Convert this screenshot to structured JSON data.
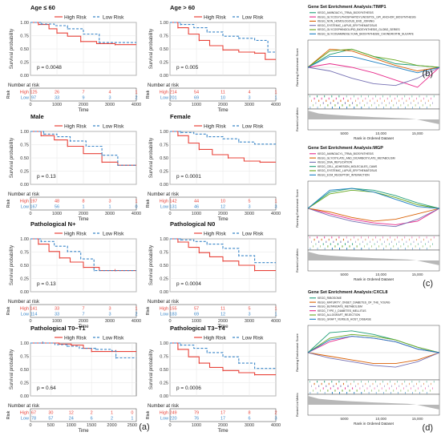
{
  "panel_labels": {
    "a": "(a)",
    "b": "(b)",
    "c": "(c)",
    "d": "(d)"
  },
  "km_common": {
    "legend_labels": [
      "High Risk",
      "Low Risk"
    ],
    "ylabel": "Survival probability",
    "xlabel": "Time",
    "risk_table_title": "Number at risk",
    "risk_side_label": "Risk",
    "risk_row_labels": [
      "High",
      "Low"
    ],
    "y_ticks": [
      "0.00",
      "0.25",
      "0.50",
      "0.75",
      "1.00"
    ],
    "colors": {
      "high": "#e8433a",
      "low": "#3a86c8",
      "grid": "#e6e6e6"
    }
  },
  "gsea_common": {
    "ylabel_top": "Running Enrichment Score",
    "ylabel_bottom": "Ranked List Metric",
    "xlabel": "Rank in Ordered Dataset",
    "x_ticks": [
      "5000",
      "10,000",
      "15,000"
    ]
  },
  "chart_data": [
    {
      "type": "line",
      "id": "km1",
      "title": "Age ≤ 60",
      "pvalue": "p = 0.0048",
      "x_ticks": [
        "0",
        "1000",
        "2000",
        "3000",
        "4000"
      ],
      "xlim": [
        0,
        4000
      ],
      "ylim": [
        0,
        1
      ],
      "series": [
        {
          "name": "High Risk",
          "x": [
            0,
            300,
            700,
            1000,
            1400,
            1900,
            2500,
            3200,
            4000
          ],
          "y": [
            1.0,
            0.96,
            0.88,
            0.8,
            0.74,
            0.64,
            0.6,
            0.58,
            0.58
          ]
        },
        {
          "name": "Low Risk",
          "x": [
            0,
            400,
            900,
            1400,
            2000,
            2600,
            3300,
            4000
          ],
          "y": [
            1.0,
            0.97,
            0.94,
            0.88,
            0.78,
            0.62,
            0.62,
            0.62
          ]
        }
      ],
      "risk": {
        "high": [
          "125",
          "26",
          "7",
          "4",
          "1"
        ],
        "low": [
          "97",
          "33",
          "9",
          "3",
          "2"
        ]
      }
    },
    {
      "type": "line",
      "id": "km2",
      "title": "Age > 60",
      "pvalue": "p = 0.005",
      "x_ticks": [
        "0",
        "1000",
        "2000",
        "3000",
        "4000"
      ],
      "xlim": [
        0,
        4000
      ],
      "ylim": [
        0,
        1
      ],
      "series": [
        {
          "name": "High Risk",
          "x": [
            0,
            300,
            700,
            1100,
            1500,
            2000,
            2600,
            3200,
            3600,
            4000
          ],
          "y": [
            1.0,
            0.9,
            0.78,
            0.66,
            0.56,
            0.48,
            0.44,
            0.42,
            0.3,
            0.3
          ]
        },
        {
          "name": "Low Risk",
          "x": [
            0,
            400,
            900,
            1400,
            2000,
            2600,
            3200,
            3700,
            4000
          ],
          "y": [
            1.0,
            0.96,
            0.9,
            0.82,
            0.74,
            0.7,
            0.66,
            0.44,
            0.44
          ]
        }
      ],
      "risk": {
        "high": [
          "214",
          "54",
          "11",
          "4",
          "1"
        ],
        "low": [
          "201",
          "69",
          "10",
          "3",
          "1"
        ]
      }
    },
    {
      "type": "line",
      "id": "km3",
      "title": "Male",
      "pvalue": "p = 0.13",
      "x_ticks": [
        "0",
        "1000",
        "2000",
        "3000",
        "4000"
      ],
      "xlim": [
        0,
        4000
      ],
      "ylim": [
        0,
        1
      ],
      "series": [
        {
          "name": "High Risk",
          "x": [
            0,
            400,
            900,
            1400,
            2000,
            2700,
            3300,
            4000
          ],
          "y": [
            1.0,
            0.92,
            0.84,
            0.72,
            0.58,
            0.42,
            0.36,
            0.36
          ]
        },
        {
          "name": "Low Risk",
          "x": [
            0,
            500,
            1000,
            1500,
            2100,
            2700,
            3300,
            4000
          ],
          "y": [
            1.0,
            0.95,
            0.9,
            0.82,
            0.72,
            0.55,
            0.36,
            0.36
          ]
        }
      ],
      "risk": {
        "high": [
          "197",
          "48",
          "8",
          "3",
          "1"
        ],
        "low": [
          "167",
          "56",
          "1",
          "1",
          "0"
        ]
      }
    },
    {
      "type": "line",
      "id": "km4",
      "title": "Female",
      "pvalue": "p = 0.0001",
      "x_ticks": [
        "0",
        "1000",
        "2000",
        "3000",
        "4000"
      ],
      "xlim": [
        0,
        4000
      ],
      "ylim": [
        0,
        1
      ],
      "series": [
        {
          "name": "High Risk",
          "x": [
            0,
            300,
            700,
            1100,
            1600,
            2200,
            2800,
            3400,
            4000
          ],
          "y": [
            1.0,
            0.92,
            0.78,
            0.66,
            0.56,
            0.5,
            0.44,
            0.42,
            0.42
          ]
        },
        {
          "name": "Low Risk",
          "x": [
            0,
            400,
            900,
            1400,
            2000,
            2600,
            3200,
            4000
          ],
          "y": [
            1.0,
            0.98,
            0.95,
            0.9,
            0.86,
            0.8,
            0.76,
            0.76
          ]
        }
      ],
      "risk": {
        "high": [
          "142",
          "44",
          "10",
          "5",
          "1"
        ],
        "low": [
          "131",
          "46",
          "12",
          "3",
          "3"
        ]
      }
    },
    {
      "type": "line",
      "id": "km5",
      "title": "Pathological N+",
      "pvalue": "p = 0.13",
      "x_ticks": [
        "0",
        "1000",
        "2000",
        "3000",
        "4000"
      ],
      "xlim": [
        0,
        4000
      ],
      "ylim": [
        0,
        1
      ],
      "series": [
        {
          "name": "High Risk",
          "x": [
            0,
            300,
            700,
            1100,
            1500,
            2000,
            2600,
            3200,
            4000
          ],
          "y": [
            1.0,
            0.9,
            0.76,
            0.64,
            0.56,
            0.46,
            0.4,
            0.4,
            0.4
          ]
        },
        {
          "name": "Low Risk",
          "x": [
            0,
            400,
            900,
            1400,
            1900,
            2400,
            3000,
            4000
          ],
          "y": [
            1.0,
            0.95,
            0.86,
            0.76,
            0.62,
            0.4,
            0.4,
            0.4
          ]
        }
      ],
      "risk": {
        "high": [
          "141",
          "33",
          "7",
          "3",
          "1"
        ],
        "low": [
          "114",
          "33",
          "7",
          "3",
          "2"
        ]
      }
    },
    {
      "type": "line",
      "id": "km6",
      "title": "Pathological N0",
      "pvalue": "p = 0.0004",
      "x_ticks": [
        "0",
        "1000",
        "2000",
        "3000",
        "4000"
      ],
      "xlim": [
        0,
        4000
      ],
      "ylim": [
        0,
        1
      ],
      "series": [
        {
          "name": "High Risk",
          "x": [
            0,
            300,
            700,
            1100,
            1500,
            2000,
            2600,
            3200,
            4000
          ],
          "y": [
            1.0,
            0.94,
            0.84,
            0.74,
            0.66,
            0.58,
            0.5,
            0.4,
            0.4
          ]
        },
        {
          "name": "Low Risk",
          "x": [
            0,
            400,
            900,
            1400,
            2000,
            2600,
            3200,
            4000
          ],
          "y": [
            1.0,
            0.98,
            0.95,
            0.9,
            0.82,
            0.68,
            0.55,
            0.55
          ]
        }
      ],
      "risk": {
        "high": [
          "155",
          "57",
          "11",
          "5",
          "1"
        ],
        "low": [
          "183",
          "69",
          "12",
          "3",
          "1"
        ]
      }
    },
    {
      "type": "line",
      "id": "km7",
      "title": "Pathological T0−T1",
      "pvalue": "p = 0.64",
      "x_ticks": [
        "0",
        "500",
        "1000",
        "1500",
        "2000",
        "2500"
      ],
      "xlim": [
        0,
        2600
      ],
      "ylim": [
        0,
        1
      ],
      "series": [
        {
          "name": "High Risk",
          "x": [
            0,
            300,
            700,
            1000,
            1300,
            1500,
            1800,
            2100,
            2600
          ],
          "y": [
            1.0,
            1.0,
            0.98,
            0.96,
            0.9,
            0.84,
            0.84,
            0.84,
            0.84
          ]
        },
        {
          "name": "Low Risk",
          "x": [
            0,
            300,
            600,
            900,
            1200,
            1600,
            2000,
            2100,
            2600
          ],
          "y": [
            1.0,
            1.0,
            0.97,
            0.94,
            0.9,
            0.88,
            0.85,
            0.72,
            0.72
          ]
        }
      ],
      "risk": {
        "high": [
          "67",
          "30",
          "12",
          "2",
          "1",
          "0"
        ],
        "low": [
          "78",
          "57",
          "24",
          "6",
          "2",
          "1"
        ]
      }
    },
    {
      "type": "line",
      "id": "km8",
      "title": "Pathological T3−T4",
      "pvalue": "p = 0.0006",
      "x_ticks": [
        "0",
        "1000",
        "2000",
        "3000",
        "4000"
      ],
      "xlim": [
        0,
        4000
      ],
      "ylim": [
        0,
        1
      ],
      "series": [
        {
          "name": "High Risk",
          "x": [
            0,
            300,
            700,
            1100,
            1500,
            2000,
            2600,
            3200,
            4000
          ],
          "y": [
            1.0,
            0.88,
            0.74,
            0.62,
            0.54,
            0.48,
            0.44,
            0.4,
            0.4
          ]
        },
        {
          "name": "Low Risk",
          "x": [
            0,
            400,
            900,
            1400,
            2000,
            2600,
            3200,
            4000
          ],
          "y": [
            1.0,
            0.96,
            0.9,
            0.82,
            0.74,
            0.62,
            0.52,
            0.52
          ]
        }
      ],
      "risk": {
        "high": [
          "249",
          "79",
          "17",
          "8",
          "2"
        ],
        "low": [
          "220",
          "76",
          "17",
          "6",
          "3"
        ]
      }
    },
    {
      "type": "line",
      "id": "gsea_b",
      "title": "Gene Set Enrichment Analysis:TIMP1",
      "legend": [
        "KEGG_AMINOACYL_TRNA_BIOSYNTHESIS",
        "KEGG_GLYCOSYLPHOSPHATIDYLINOSITOL_GPI_ANCHOR_BIOSYNTHESIS",
        "KEGG_NON_HOMOLOGOUS_END_JOINING",
        "KEGG_SYSTEMIC_LUPUS_ERYTHEMATOSUS",
        "KEGG_GLYCOSPHINGOLIPID_BIOSYNTHESIS_GLOBO_SERIES",
        "KEGG_GLYCOSAMINOGLYCAN_BIOSYNTHESIS_CHONDROITIN_SULFATE"
      ],
      "colors": [
        "#1f9e77",
        "#e7298a",
        "#d95f02",
        "#7570b3",
        "#66a61e",
        "#1b7ec2"
      ],
      "x": [
        0,
        3000,
        6000,
        9000,
        12000,
        15000,
        18000
      ],
      "series": [
        {
          "y": [
            0.0,
            0.35,
            0.5,
            0.3,
            0.1,
            0.05,
            0.0
          ]
        },
        {
          "y": [
            0.0,
            0.1,
            0.0,
            -0.15,
            -0.35,
            -0.55,
            0.0
          ]
        },
        {
          "y": [
            0.0,
            0.5,
            0.45,
            0.25,
            0.05,
            -0.1,
            0.0
          ]
        },
        {
          "y": [
            0.0,
            -0.1,
            -0.3,
            -0.45,
            -0.5,
            -0.3,
            0.0
          ]
        },
        {
          "y": [
            0.0,
            0.45,
            0.5,
            0.3,
            0.2,
            0.05,
            0.0
          ]
        },
        {
          "y": [
            0.0,
            0.3,
            0.3,
            0.15,
            0.0,
            -0.15,
            0.0
          ]
        }
      ]
    },
    {
      "type": "line",
      "id": "gsea_c",
      "title": "Gene Set Enrichment Analysis:MGP",
      "legend": [
        "KEGG_AMINOACYL_TRNA_BIOSYNTHESIS",
        "KEGG_GLYOXYLATE_AND_DICARBOXYLATE_METABOLISM",
        "KEGG_DNA_REPLICATION",
        "KEGG_CELL_ADHESION_MOLECULES_CAMS",
        "KEGG_SYSTEMIC_LUPUS_ERYTHEMATOSUS",
        "KEGG_ECM_RECEPTOR_INTERACTION"
      ],
      "colors": [
        "#e7298a",
        "#d95f02",
        "#7570b3",
        "#1f9e77",
        "#66a61e",
        "#1b7ec2"
      ],
      "x": [
        0,
        3000,
        6000,
        9000,
        12000,
        15000,
        18000
      ],
      "series": [
        {
          "y": [
            0.0,
            -0.15,
            -0.3,
            -0.4,
            -0.45,
            -0.35,
            0.0
          ]
        },
        {
          "y": [
            0.0,
            -0.1,
            -0.25,
            -0.35,
            -0.3,
            -0.15,
            0.0
          ]
        },
        {
          "y": [
            0.0,
            -0.2,
            -0.35,
            -0.45,
            -0.5,
            -0.3,
            0.0
          ]
        },
        {
          "y": [
            0.0,
            0.45,
            0.55,
            0.5,
            0.35,
            0.15,
            0.0
          ]
        },
        {
          "y": [
            0.0,
            0.4,
            0.5,
            0.45,
            0.3,
            0.1,
            0.0
          ]
        },
        {
          "y": [
            0.0,
            0.5,
            0.55,
            0.45,
            0.25,
            0.05,
            0.0
          ]
        }
      ]
    },
    {
      "type": "line",
      "id": "gsea_d",
      "title": "Gene Set Enrichment Analysis:CXCL8",
      "legend": [
        "KEGG_RIBOSOME",
        "KEGG_MATURITY_ONSET_DIABETES_OF_THE_YOUNG",
        "KEGG_BUTANOATE_METABOLISM",
        "KEGG_TYPE_I_DIABETES_MELLITUS",
        "KEGG_ALLOGRAFT_REJECTION",
        "KEGG_GRAFT_VERSUS_HOST_DISEASE"
      ],
      "colors": [
        "#1f9e77",
        "#d95f02",
        "#7570b3",
        "#e7298a",
        "#66a61e",
        "#1b7ec2"
      ],
      "x": [
        0,
        3000,
        6000,
        9000,
        12000,
        15000,
        18000
      ],
      "series": [
        {
          "y": [
            0.0,
            0.55,
            0.6,
            0.5,
            0.35,
            0.15,
            0.0
          ]
        },
        {
          "y": [
            0.0,
            -0.1,
            -0.2,
            -0.3,
            -0.3,
            -0.2,
            0.0
          ]
        },
        {
          "y": [
            0.0,
            -0.15,
            -0.25,
            -0.35,
            -0.4,
            -0.25,
            0.0
          ]
        },
        {
          "y": [
            0.0,
            0.3,
            0.45,
            0.4,
            0.3,
            0.1,
            0.0
          ]
        },
        {
          "y": [
            0.0,
            0.4,
            0.5,
            0.45,
            0.35,
            0.15,
            0.0
          ]
        },
        {
          "y": [
            0.0,
            0.35,
            0.45,
            0.4,
            0.3,
            0.1,
            0.0
          ]
        }
      ]
    }
  ]
}
